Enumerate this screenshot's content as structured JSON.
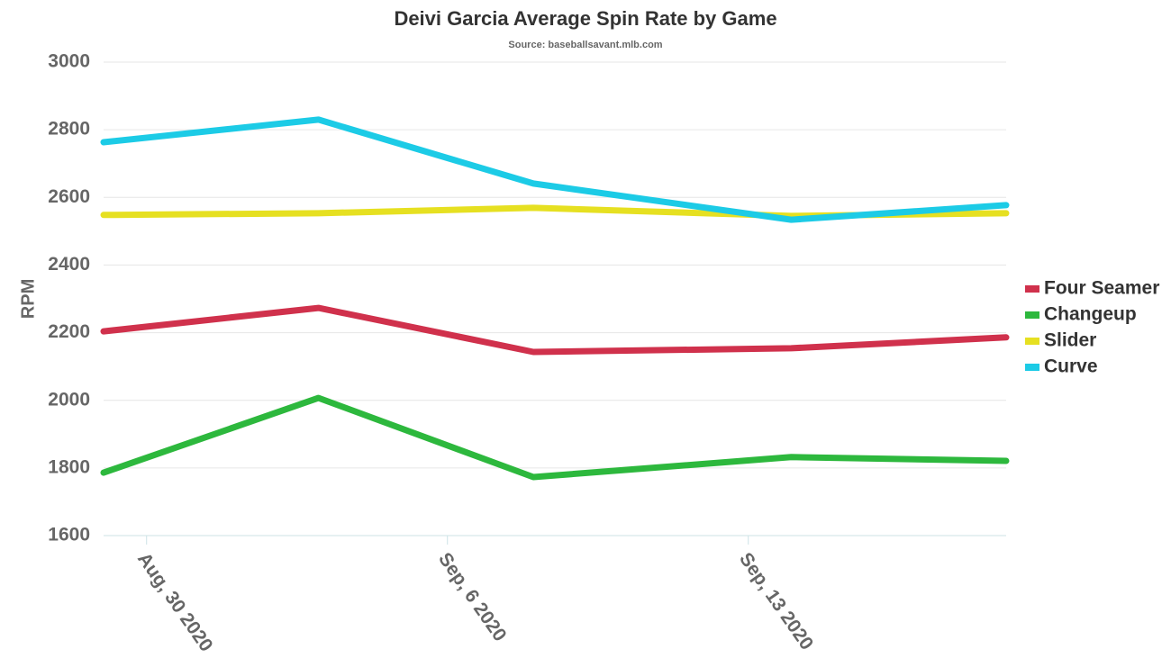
{
  "chart_data": {
    "type": "line",
    "title": "Deivi Garcia Average Spin Rate by Game",
    "subtitle": "Source: baseballsavant.mlb.com",
    "y_label": "RPM",
    "x": [
      "2020-08-29",
      "2020-09-03",
      "2020-09-08",
      "2020-09-14",
      "2020-09-19"
    ],
    "xlim": [
      "2020-08-29",
      "2020-09-19"
    ],
    "xticks": [
      {
        "value": "2020-08-30",
        "label": "Aug, 30 2020"
      },
      {
        "value": "2020-09-06",
        "label": "Sep, 6 2020"
      },
      {
        "value": "2020-09-13",
        "label": "Sep, 13 2020"
      }
    ],
    "ylim": [
      1600,
      3000
    ],
    "yticks": [
      1600,
      1800,
      2000,
      2200,
      2400,
      2600,
      2800,
      3000
    ],
    "grid": true,
    "legend": "right",
    "series": [
      {
        "name": "Four Seamer",
        "color": "#d0314c",
        "values": [
          2204,
          2273,
          2143,
          2154,
          2186
        ]
      },
      {
        "name": "Changeup",
        "color": "#2db83d",
        "values": [
          1786,
          2007,
          1773,
          1832,
          1821
        ]
      },
      {
        "name": "Slider",
        "color": "#e6e021",
        "values": [
          2548,
          2553,
          2569,
          2545,
          2553
        ]
      },
      {
        "name": "Curve",
        "color": "#1ccbe6",
        "values": [
          2763,
          2830,
          2641,
          2534,
          2577
        ]
      }
    ]
  }
}
